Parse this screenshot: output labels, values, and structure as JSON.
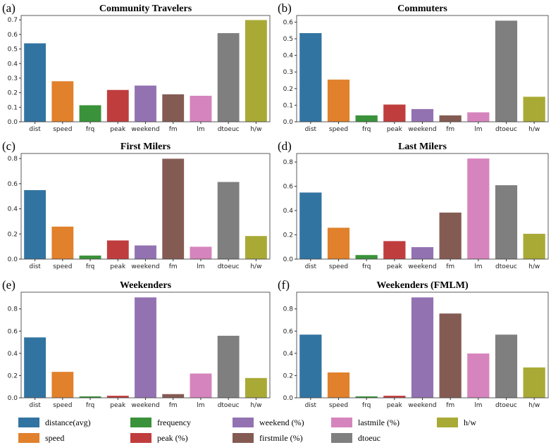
{
  "legend": [
    {
      "label": "distance(avg)",
      "color": "#3274a1"
    },
    {
      "label": "frequency",
      "color": "#3a923a"
    },
    {
      "label": "weekend (%)",
      "color": "#9372b2"
    },
    {
      "label": "lastmile  (%)",
      "color": "#d684bd"
    },
    {
      "label": "h/w",
      "color": "#a9aa35"
    },
    {
      "label": "speed",
      "color": "#e1812c"
    },
    {
      "label": "peak (%)",
      "color": "#c03d3e"
    },
    {
      "label": "firstmile  (%)",
      "color": "#845b53"
    },
    {
      "label": "dtoeuc",
      "color": "#7f7f7f"
    }
  ],
  "chart_data": [
    {
      "type": "bar",
      "panel": "(a)",
      "title": "Community Travelers",
      "categories": [
        "dist",
        "speed",
        "frq",
        "peak",
        "weekend",
        "fm",
        "lm",
        "dtoeuc",
        "h/w"
      ],
      "values": [
        0.54,
        0.28,
        0.115,
        0.22,
        0.25,
        0.19,
        0.18,
        0.61,
        0.7
      ],
      "ylim": [
        0,
        0.73
      ],
      "yticks": [
        0.0,
        0.1,
        0.2,
        0.3,
        0.4,
        0.5,
        0.6,
        0.7
      ],
      "ytick_labels": [
        "0.0",
        "0.1",
        "0.2",
        "0.3",
        "0.4",
        "0.5",
        "0.6",
        "0.7"
      ]
    },
    {
      "type": "bar",
      "panel": "(b)",
      "title": "Commuters",
      "categories": [
        "dist",
        "speed",
        "frq",
        "peak",
        "weekend",
        "fm",
        "lm",
        "dtoeuc",
        "h/w"
      ],
      "values": [
        0.535,
        0.255,
        0.04,
        0.105,
        0.078,
        0.04,
        0.058,
        0.61,
        0.152
      ],
      "ylim": [
        0,
        0.64
      ],
      "yticks": [
        0.0,
        0.1,
        0.2,
        0.3,
        0.4,
        0.5,
        0.6
      ],
      "ytick_labels": [
        "0.0",
        "0.1",
        "0.2",
        "0.3",
        "0.4",
        "0.5",
        "0.6"
      ]
    },
    {
      "type": "bar",
      "panel": "(c)",
      "title": "First Milers",
      "categories": [
        "dist",
        "speed",
        "frq",
        "peak",
        "weekend",
        "fm",
        "lm",
        "dtoeuc",
        "h/w"
      ],
      "values": [
        0.55,
        0.26,
        0.03,
        0.15,
        0.11,
        0.8,
        0.1,
        0.615,
        0.185
      ],
      "ylim": [
        0,
        0.84
      ],
      "yticks": [
        0.0,
        0.2,
        0.4,
        0.6,
        0.8
      ],
      "ytick_labels": [
        "0.0",
        "0.2",
        "0.4",
        "0.6",
        "0.8"
      ]
    },
    {
      "type": "bar",
      "panel": "(d)",
      "title": "Last Milers",
      "categories": [
        "dist",
        "speed",
        "frq",
        "peak",
        "weekend",
        "fm",
        "lm",
        "dtoeuc",
        "h/w"
      ],
      "values": [
        0.55,
        0.26,
        0.035,
        0.15,
        0.1,
        0.385,
        0.83,
        0.61,
        0.21
      ],
      "ylim": [
        0,
        0.87
      ],
      "yticks": [
        0.0,
        0.2,
        0.4,
        0.6,
        0.8
      ],
      "ytick_labels": [
        "0.0",
        "0.2",
        "0.4",
        "0.6",
        "0.8"
      ]
    },
    {
      "type": "bar",
      "panel": "(e)",
      "title": "Weekenders",
      "categories": [
        "dist",
        "speed",
        "frq",
        "peak",
        "weekend",
        "fm",
        "lm",
        "dtoeuc",
        "h/w"
      ],
      "values": [
        0.545,
        0.235,
        0.015,
        0.02,
        0.905,
        0.035,
        0.22,
        0.56,
        0.18
      ],
      "ylim": [
        0,
        0.95
      ],
      "yticks": [
        0.0,
        0.2,
        0.4,
        0.6,
        0.8
      ],
      "ytick_labels": [
        "0.0",
        "0.2",
        "0.4",
        "0.6",
        "0.8"
      ]
    },
    {
      "type": "bar",
      "panel": "(f)",
      "title": "Weekenders (FMLM)",
      "categories": [
        "dist",
        "speed",
        "frq",
        "peak",
        "weekend",
        "fm",
        "lm",
        "dtoeuc",
        "h/w"
      ],
      "values": [
        0.57,
        0.23,
        0.015,
        0.02,
        0.905,
        0.76,
        0.4,
        0.57,
        0.275
      ],
      "ylim": [
        0,
        0.95
      ],
      "yticks": [
        0.0,
        0.2,
        0.4,
        0.6,
        0.8
      ],
      "ytick_labels": [
        "0.0",
        "0.2",
        "0.4",
        "0.6",
        "0.8"
      ]
    }
  ],
  "bar_colors": [
    "#3274a1",
    "#e1812c",
    "#3a923a",
    "#c03d3e",
    "#9372b2",
    "#845b53",
    "#d684bd",
    "#7f7f7f",
    "#a9aa35"
  ]
}
